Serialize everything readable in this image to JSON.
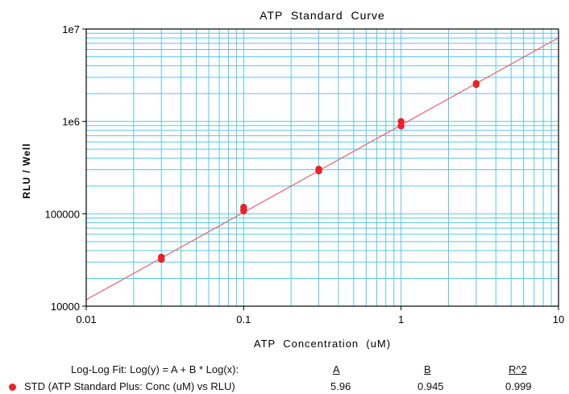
{
  "chart_data": {
    "type": "scatter",
    "title": "ATP  Standard  Curve",
    "xlabel": "ATP  Concentration  (uM)",
    "ylabel": "RLU / Well",
    "xscale": "log",
    "yscale": "log",
    "xlim": [
      0.01,
      10
    ],
    "ylim": [
      10000,
      10000000
    ],
    "grid": true,
    "x_tick_labels": [
      "0.01",
      "0.1",
      "1",
      "10"
    ],
    "y_tick_labels": [
      "10000",
      "100000",
      "1e6",
      "1e7"
    ],
    "x_tick_values": [
      0.01,
      0.1,
      1,
      10
    ],
    "y_tick_values": [
      10000,
      100000,
      1000000,
      10000000
    ],
    "series": [
      {
        "name": "STD (ATP Standard Plus: Conc (uM) vs RLU)",
        "color": "#e8222a",
        "x": [
          0.03,
          0.03,
          0.1,
          0.1,
          0.1,
          0.3,
          0.3,
          1,
          1,
          3,
          3
        ],
        "y": [
          32000,
          34000,
          107000,
          113000,
          118000,
          290000,
          305000,
          890000,
          1000000,
          2500000,
          2580000
        ]
      }
    ],
    "fit": {
      "color": "#e8646a",
      "A": 5.96,
      "B": 0.945
    }
  },
  "fit_table": {
    "equation": "Log-Log Fit: Log(y) = A + B * Log(x):",
    "col_a": "A",
    "col_b": "B",
    "col_r2": "R^2",
    "series_label": "STD (ATP Standard Plus: Conc (uM) vs RLU)",
    "a_value": "5.96",
    "b_value": "0.945",
    "r2_value": "0.999"
  }
}
